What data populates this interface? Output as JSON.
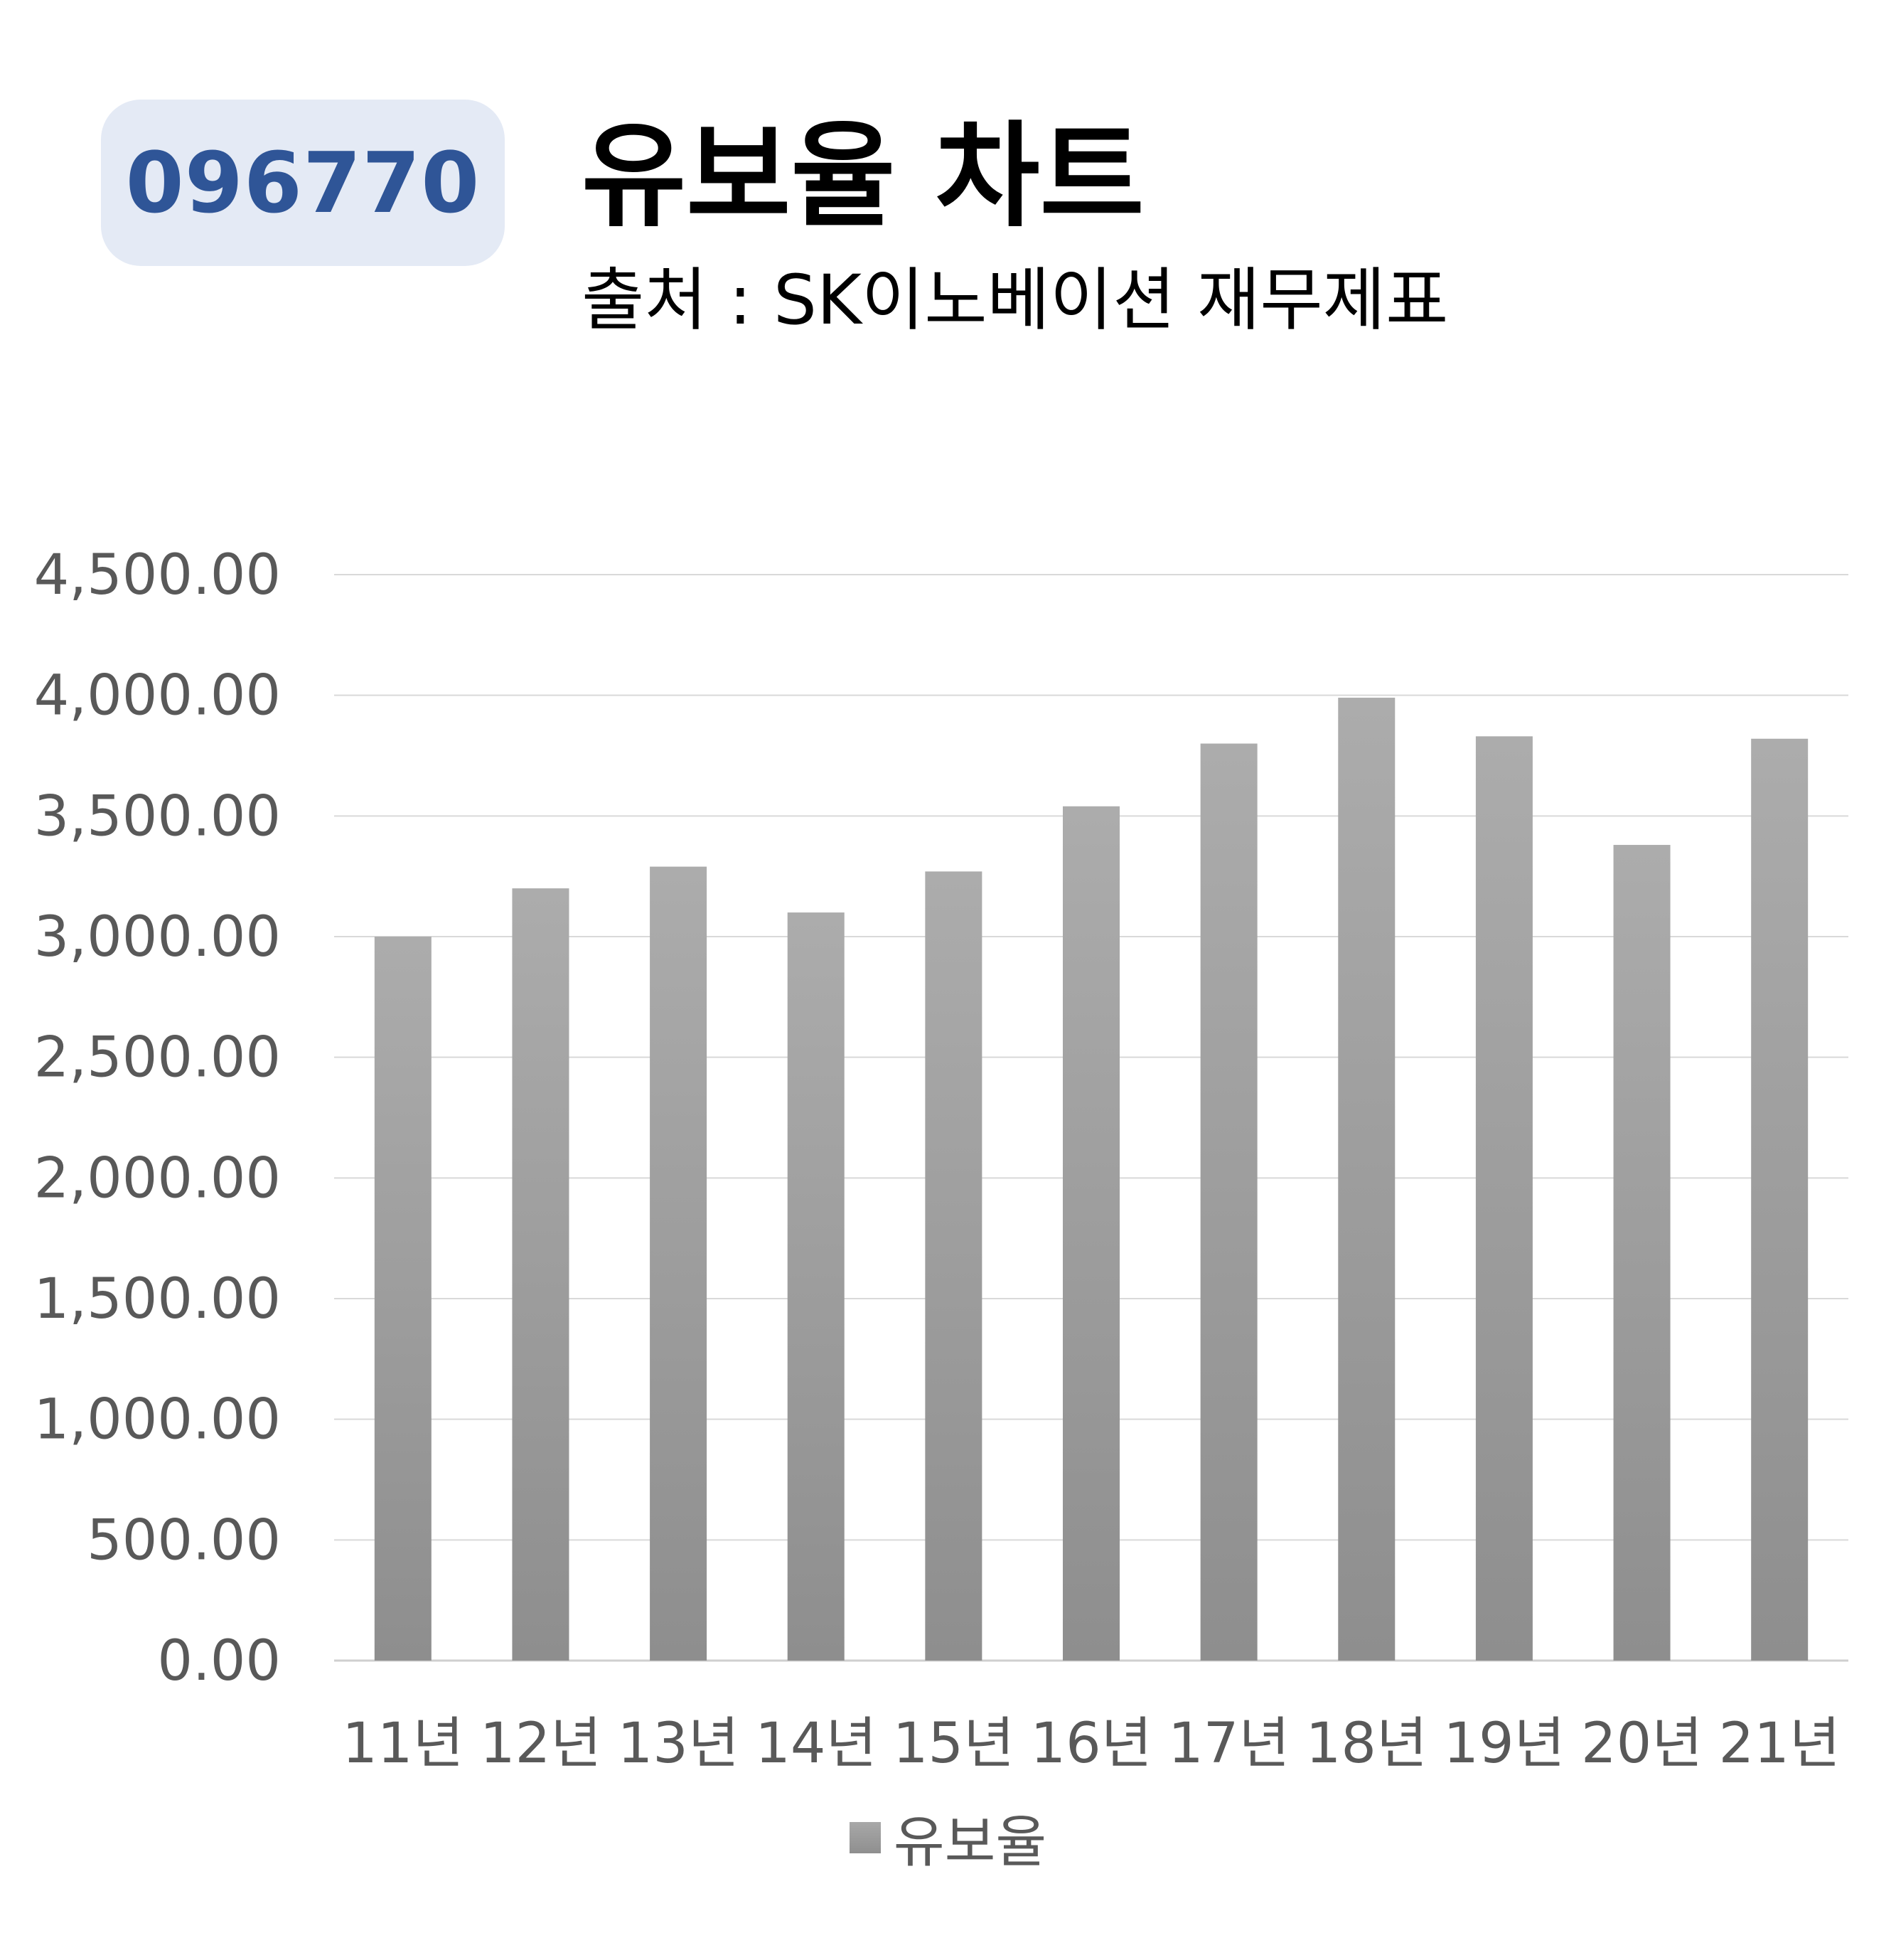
{
  "header": {
    "ticker": "096770",
    "title": "유보율 차트",
    "subtitle": "출처 : SK이노베이션 재무제표"
  },
  "chart_data": {
    "type": "bar",
    "categories": [
      "11년",
      "12년",
      "13년",
      "14년",
      "15년",
      "16년",
      "17년",
      "18년",
      "19년",
      "20년",
      "21년"
    ],
    "series": [
      {
        "name": "유보율",
        "values": [
          3000,
          3200,
          3290,
          3100,
          3270,
          3540,
          3800,
          3990,
          3830,
          3380,
          3820
        ]
      }
    ],
    "yticks": [
      "0.00",
      "500.00",
      "1,000.00",
      "1,500.00",
      "2,000.00",
      "2,500.00",
      "3,000.00",
      "3,500.00",
      "4,000.00",
      "4,500.00"
    ],
    "ylim": [
      0,
      4500
    ],
    "grid": true,
    "legend_position": "bottom",
    "colors": {
      "bar_top": "#acacac",
      "bar_bottom": "#8e8e8e",
      "grid": "#d9d9d9",
      "axis_text": "#595959",
      "badge_bg": "#e4eaf5",
      "badge_text": "#2f5597"
    }
  },
  "legend": {
    "label": "유보율"
  }
}
